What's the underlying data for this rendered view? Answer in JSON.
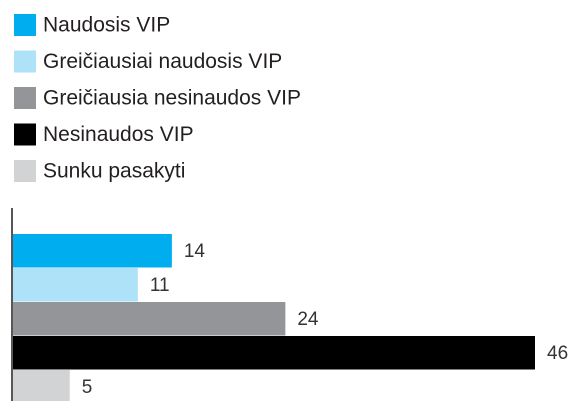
{
  "chart_data": {
    "type": "bar",
    "orientation": "horizontal",
    "categories": [
      "Naudosis VIP",
      "Greičiausiai naudosis VIP",
      "Greičiausia nesinaudos VIP",
      "Nesinaudos VIP",
      "Sunku pasakyti"
    ],
    "values": [
      14,
      11,
      24,
      46,
      5
    ],
    "colors": [
      "#00aeef",
      "#aee2f8",
      "#939598",
      "#000000",
      "#d1d3d4"
    ],
    "legend": "top-left"
  }
}
